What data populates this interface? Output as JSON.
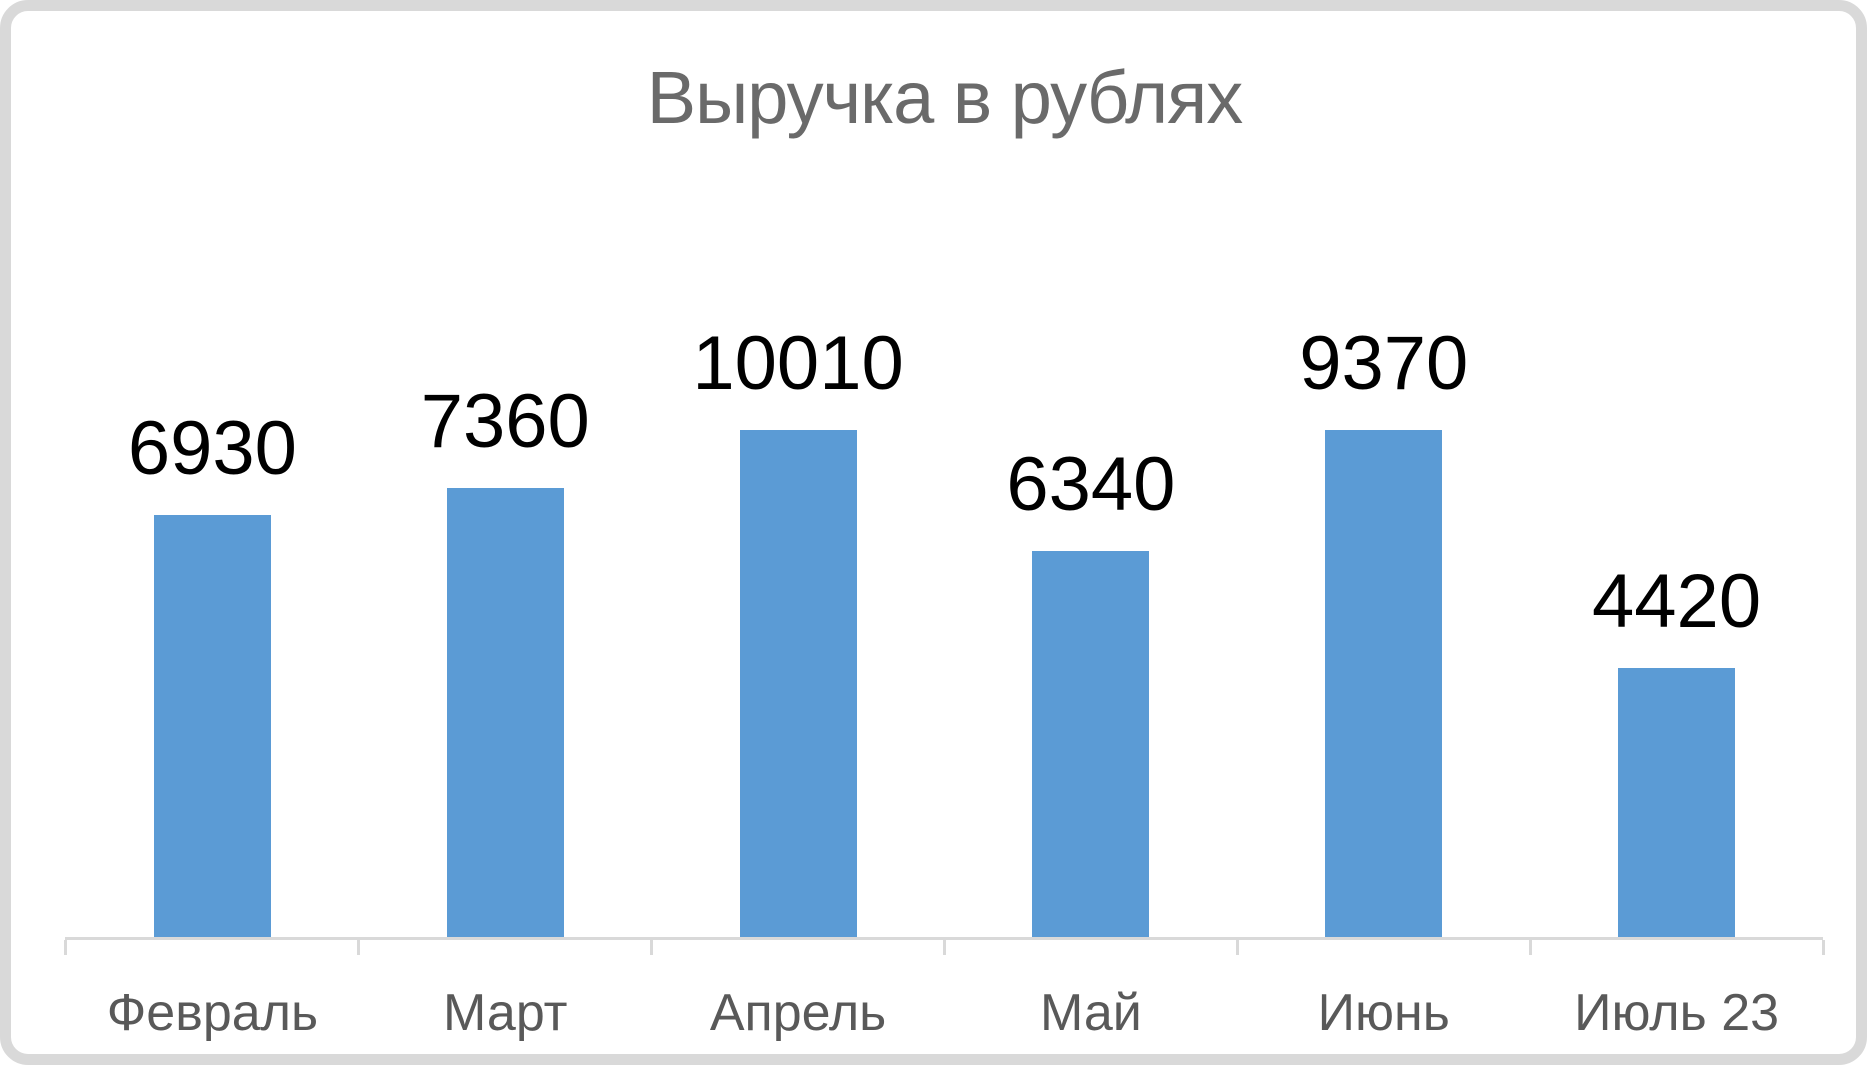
{
  "chart_data": {
    "type": "bar",
    "title": "Выручка в рублях",
    "categories": [
      "Февраль",
      "Март",
      "Апрель",
      "Май",
      "Июнь",
      "Июль 23"
    ],
    "values": [
      6930,
      7360,
      10010,
      6340,
      9370,
      4420
    ],
    "data_labels": [
      "6930",
      "7360",
      "10010",
      "6340",
      "9370",
      "4420"
    ],
    "series_name": "Выручка",
    "legend": "none",
    "gridlines": false,
    "value_axis": "hidden",
    "data_label_position": "outside-end",
    "category_axis": {
      "tick_marks": "outside",
      "tick_count": 7
    },
    "colors": {
      "bar": "#5B9BD5",
      "title_text": "#6A6A6A",
      "axis_text": "#595959",
      "axis_line": "#D9D9D9",
      "data_label_text": "#000000",
      "frame_border": "#D9D9D9",
      "background": "#FFFFFF"
    }
  }
}
